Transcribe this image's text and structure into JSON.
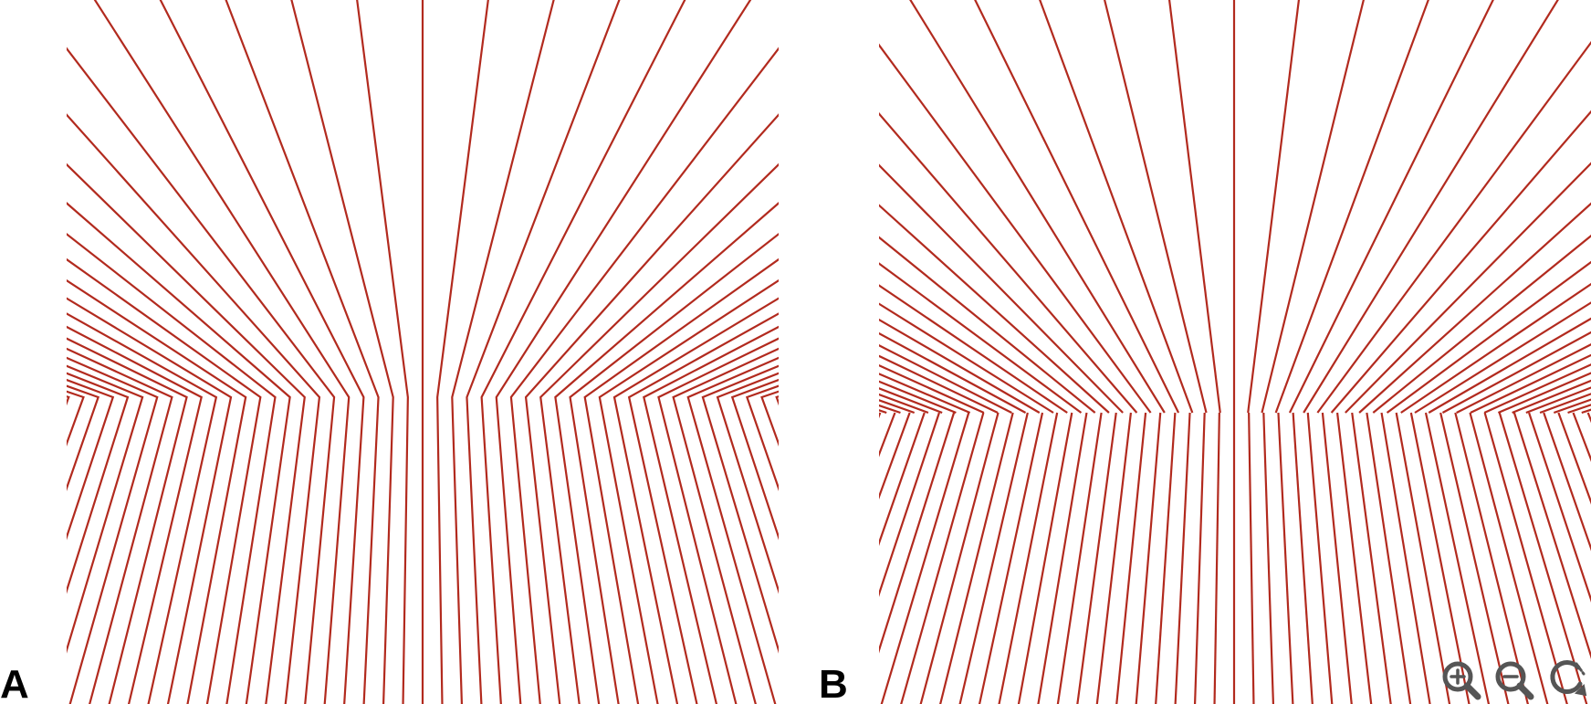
{
  "figure": {
    "line_color": "#b22a1e",
    "panels": [
      {
        "id": "A",
        "label": "A",
        "style": "bent-continuous"
      },
      {
        "id": "B",
        "label": "B",
        "style": "broken-offset"
      }
    ]
  },
  "toolbar": {
    "zoom_in_icon": "zoom-in-icon",
    "zoom_out_icon": "zoom-out-icon",
    "reset_icon": "reset-icon",
    "icon_color": "#555555"
  }
}
